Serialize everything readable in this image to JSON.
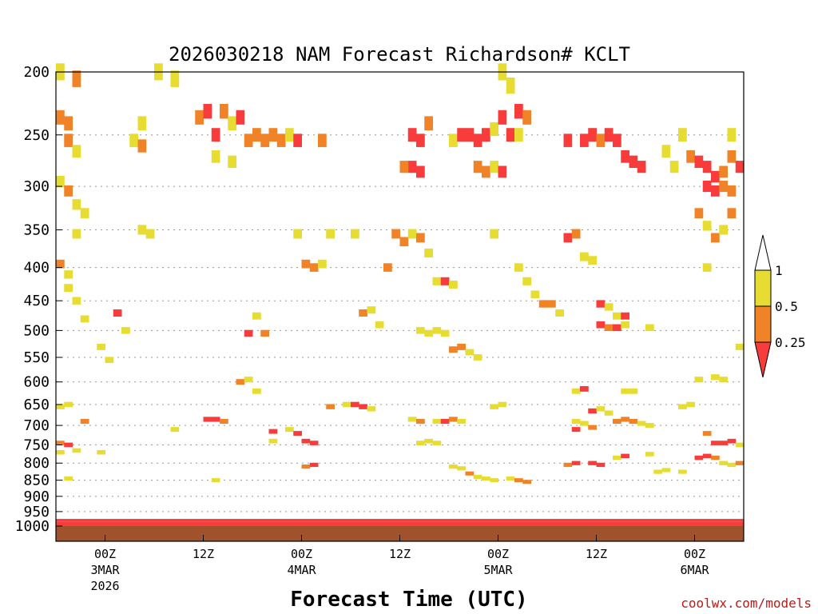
{
  "chart_data": {
    "type": "heatmap",
    "title": "2026030218 NAM Forecast Richardson# KCLT",
    "xlabel": "Forecast Time (UTC)",
    "ylabel": "",
    "y_ticks": [
      200,
      250,
      300,
      350,
      400,
      450,
      500,
      550,
      600,
      650,
      700,
      750,
      800,
      850,
      900,
      950,
      1000
    ],
    "y_range": [
      1000,
      200
    ],
    "x_range_hours": [
      -6,
      78
    ],
    "x_ticks": [
      {
        "hour": 0,
        "label": "00Z",
        "date": "3MAR",
        "year": "2026"
      },
      {
        "hour": 12,
        "label": "12Z",
        "date": "",
        "year": ""
      },
      {
        "hour": 24,
        "label": "00Z",
        "date": "4MAR",
        "year": ""
      },
      {
        "hour": 36,
        "label": "12Z",
        "date": "",
        "year": ""
      },
      {
        "hour": 48,
        "label": "00Z",
        "date": "5MAR",
        "year": ""
      },
      {
        "hour": 60,
        "label": "12Z",
        "date": "",
        "year": ""
      },
      {
        "hour": 72,
        "label": "00Z",
        "date": "6MAR",
        "year": ""
      }
    ],
    "levels": [
      {
        "max_ri": 0.25,
        "color": "#f83c3c"
      },
      {
        "max_ri": 0.5,
        "color": "#f08228"
      },
      {
        "max_ri": 1,
        "color": "#e6dc32"
      }
    ],
    "colorbar_labels": [
      "1",
      "0.5",
      "0.25"
    ],
    "surface_color": "#a0522d",
    "cells": [
      {
        "t": -6,
        "p": 200,
        "l": 3
      },
      {
        "t": -4,
        "p": 205,
        "l": 2
      },
      {
        "t": 6,
        "p": 200,
        "l": 3
      },
      {
        "t": 8,
        "p": 205,
        "l": 3
      },
      {
        "t": -6,
        "p": 235,
        "l": 2
      },
      {
        "t": -5,
        "p": 240,
        "l": 2
      },
      {
        "t": -5,
        "p": 255,
        "l": 2
      },
      {
        "t": -4,
        "p": 265,
        "l": 3
      },
      {
        "t": 3,
        "p": 255,
        "l": 3
      },
      {
        "t": 4,
        "p": 260,
        "l": 2
      },
      {
        "t": 4,
        "p": 240,
        "l": 3
      },
      {
        "t": 11,
        "p": 235,
        "l": 2
      },
      {
        "t": 12,
        "p": 230,
        "l": 1
      },
      {
        "t": 13,
        "p": 250,
        "l": 1
      },
      {
        "t": 14,
        "p": 230,
        "l": 2
      },
      {
        "t": 15,
        "p": 240,
        "l": 3
      },
      {
        "t": 16,
        "p": 235,
        "l": 1
      },
      {
        "t": 17,
        "p": 255,
        "l": 2
      },
      {
        "t": 18,
        "p": 250,
        "l": 2
      },
      {
        "t": 19,
        "p": 255,
        "l": 2
      },
      {
        "t": 20,
        "p": 250,
        "l": 2
      },
      {
        "t": 21,
        "p": 255,
        "l": 2
      },
      {
        "t": 22,
        "p": 250,
        "l": 3
      },
      {
        "t": 13,
        "p": 270,
        "l": 3
      },
      {
        "t": 15,
        "p": 275,
        "l": 3
      },
      {
        "t": 23,
        "p": 255,
        "l": 1
      },
      {
        "t": 26,
        "p": 255,
        "l": 2
      },
      {
        "t": 37,
        "p": 250,
        "l": 1
      },
      {
        "t": 38,
        "p": 255,
        "l": 1
      },
      {
        "t": 39,
        "p": 240,
        "l": 2
      },
      {
        "t": 37,
        "p": 280,
        "l": 1
      },
      {
        "t": 38,
        "p": 285,
        "l": 1
      },
      {
        "t": 36,
        "p": 280,
        "l": 2
      },
      {
        "t": 42,
        "p": 255,
        "l": 3
      },
      {
        "t": 43,
        "p": 250,
        "l": 1
      },
      {
        "t": 44,
        "p": 250,
        "l": 1
      },
      {
        "t": 45,
        "p": 255,
        "l": 1
      },
      {
        "t": 46,
        "p": 250,
        "l": 1
      },
      {
        "t": 47,
        "p": 245,
        "l": 3
      },
      {
        "t": 45,
        "p": 280,
        "l": 2
      },
      {
        "t": 46,
        "p": 285,
        "l": 2
      },
      {
        "t": 47,
        "p": 280,
        "l": 3
      },
      {
        "t": 48,
        "p": 285,
        "l": 1
      },
      {
        "t": 48,
        "p": 235,
        "l": 1
      },
      {
        "t": 49,
        "p": 250,
        "l": 1
      },
      {
        "t": 50,
        "p": 230,
        "l": 1
      },
      {
        "t": 51,
        "p": 235,
        "l": 2
      },
      {
        "t": 48,
        "p": 200,
        "l": 3
      },
      {
        "t": 49,
        "p": 210,
        "l": 3
      },
      {
        "t": 50,
        "p": 250,
        "l": 3
      },
      {
        "t": 56,
        "p": 255,
        "l": 1
      },
      {
        "t": 58,
        "p": 255,
        "l": 1
      },
      {
        "t": 59,
        "p": 250,
        "l": 1
      },
      {
        "t": 60,
        "p": 255,
        "l": 2
      },
      {
        "t": 61,
        "p": 250,
        "l": 1
      },
      {
        "t": 62,
        "p": 255,
        "l": 1
      },
      {
        "t": 63,
        "p": 270,
        "l": 1
      },
      {
        "t": 64,
        "p": 275,
        "l": 1
      },
      {
        "t": 65,
        "p": 280,
        "l": 1
      },
      {
        "t": 68,
        "p": 265,
        "l": 3
      },
      {
        "t": 69,
        "p": 280,
        "l": 3
      },
      {
        "t": 70,
        "p": 250,
        "l": 3
      },
      {
        "t": 71,
        "p": 270,
        "l": 2
      },
      {
        "t": 72,
        "p": 275,
        "l": 1
      },
      {
        "t": 73,
        "p": 280,
        "l": 1
      },
      {
        "t": 74,
        "p": 290,
        "l": 1
      },
      {
        "t": 75,
        "p": 285,
        "l": 2
      },
      {
        "t": 76,
        "p": 270,
        "l": 2
      },
      {
        "t": 77,
        "p": 280,
        "l": 1
      },
      {
        "t": 76,
        "p": 250,
        "l": 3
      },
      {
        "t": 73,
        "p": 300,
        "l": 1
      },
      {
        "t": 74,
        "p": 305,
        "l": 1
      },
      {
        "t": 75,
        "p": 300,
        "l": 2
      },
      {
        "t": 76,
        "p": 305,
        "l": 2
      },
      {
        "t": -6,
        "p": 295,
        "l": 3
      },
      {
        "t": -5,
        "p": 305,
        "l": 2
      },
      {
        "t": -4,
        "p": 320,
        "l": 3
      },
      {
        "t": -3,
        "p": 330,
        "l": 3
      },
      {
        "t": -4,
        "p": 355,
        "l": 3
      },
      {
        "t": -6,
        "p": 395,
        "l": 2
      },
      {
        "t": -5,
        "p": 410,
        "l": 3
      },
      {
        "t": -5,
        "p": 430,
        "l": 3
      },
      {
        "t": -4,
        "p": 450,
        "l": 3
      },
      {
        "t": -3,
        "p": 480,
        "l": 3
      },
      {
        "t": 1,
        "p": 470,
        "l": 1
      },
      {
        "t": 2,
        "p": 500,
        "l": 3
      },
      {
        "t": 4,
        "p": 350,
        "l": 3
      },
      {
        "t": 5,
        "p": 355,
        "l": 3
      },
      {
        "t": 23,
        "p": 355,
        "l": 3
      },
      {
        "t": 24,
        "p": 395,
        "l": 2
      },
      {
        "t": 25,
        "p": 400,
        "l": 2
      },
      {
        "t": 26,
        "p": 395,
        "l": 3
      },
      {
        "t": 27,
        "p": 355,
        "l": 3
      },
      {
        "t": 30,
        "p": 355,
        "l": 3
      },
      {
        "t": 34,
        "p": 400,
        "l": 2
      },
      {
        "t": 35,
        "p": 355,
        "l": 2
      },
      {
        "t": 36,
        "p": 365,
        "l": 2
      },
      {
        "t": 37,
        "p": 355,
        "l": 3
      },
      {
        "t": 38,
        "p": 360,
        "l": 2
      },
      {
        "t": 39,
        "p": 380,
        "l": 3
      },
      {
        "t": 40,
        "p": 420,
        "l": 3
      },
      {
        "t": 41,
        "p": 420,
        "l": 1
      },
      {
        "t": 42,
        "p": 425,
        "l": 3
      },
      {
        "t": 47,
        "p": 355,
        "l": 3
      },
      {
        "t": 50,
        "p": 400,
        "l": 3
      },
      {
        "t": 51,
        "p": 420,
        "l": 3
      },
      {
        "t": 52,
        "p": 440,
        "l": 3
      },
      {
        "t": 53,
        "p": 455,
        "l": 2
      },
      {
        "t": 54,
        "p": 455,
        "l": 2
      },
      {
        "t": 55,
        "p": 470,
        "l": 3
      },
      {
        "t": 56,
        "p": 360,
        "l": 1
      },
      {
        "t": 57,
        "p": 355,
        "l": 2
      },
      {
        "t": 58,
        "p": 385,
        "l": 3
      },
      {
        "t": 59,
        "p": 390,
        "l": 3
      },
      {
        "t": 60,
        "p": 455,
        "l": 1
      },
      {
        "t": 61,
        "p": 460,
        "l": 3
      },
      {
        "t": 62,
        "p": 475,
        "l": 3
      },
      {
        "t": 63,
        "p": 475,
        "l": 1
      },
      {
        "t": 60,
        "p": 490,
        "l": 1
      },
      {
        "t": 61,
        "p": 495,
        "l": 2
      },
      {
        "t": 62,
        "p": 495,
        "l": 1
      },
      {
        "t": 63,
        "p": 490,
        "l": 3
      },
      {
        "t": 66,
        "p": 495,
        "l": 3
      },
      {
        "t": 73,
        "p": 345,
        "l": 3
      },
      {
        "t": 74,
        "p": 360,
        "l": 2
      },
      {
        "t": 75,
        "p": 350,
        "l": 3
      },
      {
        "t": 76,
        "p": 330,
        "l": 2
      },
      {
        "t": 72,
        "p": 330,
        "l": 2
      },
      {
        "t": 73,
        "p": 400,
        "l": 3
      },
      {
        "t": 17,
        "p": 505,
        "l": 1
      },
      {
        "t": 19,
        "p": 505,
        "l": 2
      },
      {
        "t": 18,
        "p": 475,
        "l": 3
      },
      {
        "t": 31,
        "p": 470,
        "l": 2
      },
      {
        "t": 32,
        "p": 465,
        "l": 3
      },
      {
        "t": 33,
        "p": 490,
        "l": 3
      },
      {
        "t": 38,
        "p": 500,
        "l": 3
      },
      {
        "t": 39,
        "p": 505,
        "l": 3
      },
      {
        "t": 40,
        "p": 500,
        "l": 3
      },
      {
        "t": 41,
        "p": 505,
        "l": 3
      },
      {
        "t": 42,
        "p": 535,
        "l": 2
      },
      {
        "t": 43,
        "p": 530,
        "l": 2
      },
      {
        "t": 44,
        "p": 540,
        "l": 3
      },
      {
        "t": 45,
        "p": 550,
        "l": 3
      },
      {
        "t": -1,
        "p": 530,
        "l": 3
      },
      {
        "t": 0,
        "p": 555,
        "l": 3
      },
      {
        "t": 77,
        "p": 530,
        "l": 3
      },
      {
        "t": 16,
        "p": 600,
        "l": 2
      },
      {
        "t": 17,
        "p": 595,
        "l": 3
      },
      {
        "t": 18,
        "p": 620,
        "l": 3
      },
      {
        "t": 72,
        "p": 595,
        "l": 3
      },
      {
        "t": 74,
        "p": 590,
        "l": 3
      },
      {
        "t": 75,
        "p": 595,
        "l": 3
      },
      {
        "t": 57,
        "p": 620,
        "l": 3
      },
      {
        "t": 58,
        "p": 615,
        "l": 1
      },
      {
        "t": 63,
        "p": 620,
        "l": 3
      },
      {
        "t": 64,
        "p": 620,
        "l": 3
      },
      {
        "t": 70,
        "p": 655,
        "l": 3
      },
      {
        "t": 71,
        "p": 650,
        "l": 3
      },
      {
        "t": -6,
        "p": 655,
        "l": 3
      },
      {
        "t": -5,
        "p": 650,
        "l": 3
      },
      {
        "t": -3,
        "p": 690,
        "l": 2
      },
      {
        "t": 12,
        "p": 685,
        "l": 1
      },
      {
        "t": 13,
        "p": 685,
        "l": 1
      },
      {
        "t": 14,
        "p": 690,
        "l": 2
      },
      {
        "t": 27,
        "p": 655,
        "l": 2
      },
      {
        "t": 29,
        "p": 650,
        "l": 3
      },
      {
        "t": 30,
        "p": 650,
        "l": 1
      },
      {
        "t": 31,
        "p": 655,
        "l": 1
      },
      {
        "t": 32,
        "p": 660,
        "l": 3
      },
      {
        "t": 37,
        "p": 685,
        "l": 3
      },
      {
        "t": 38,
        "p": 690,
        "l": 2
      },
      {
        "t": 40,
        "p": 690,
        "l": 3
      },
      {
        "t": 41,
        "p": 690,
        "l": 1
      },
      {
        "t": 42,
        "p": 685,
        "l": 2
      },
      {
        "t": 43,
        "p": 690,
        "l": 3
      },
      {
        "t": 47,
        "p": 655,
        "l": 3
      },
      {
        "t": 48,
        "p": 650,
        "l": 3
      },
      {
        "t": 57,
        "p": 690,
        "l": 3
      },
      {
        "t": 58,
        "p": 695,
        "l": 3
      },
      {
        "t": 59,
        "p": 665,
        "l": 1
      },
      {
        "t": 60,
        "p": 660,
        "l": 3
      },
      {
        "t": 61,
        "p": 670,
        "l": 3
      },
      {
        "t": 62,
        "p": 690,
        "l": 2
      },
      {
        "t": 63,
        "p": 685,
        "l": 2
      },
      {
        "t": 64,
        "p": 690,
        "l": 2
      },
      {
        "t": 65,
        "p": 695,
        "l": 3
      },
      {
        "t": 66,
        "p": 700,
        "l": 3
      },
      {
        "t": 57,
        "p": 710,
        "l": 1
      },
      {
        "t": 59,
        "p": 705,
        "l": 2
      },
      {
        "t": 8,
        "p": 710,
        "l": 3
      },
      {
        "t": 20,
        "p": 715,
        "l": 1
      },
      {
        "t": 22,
        "p": 710,
        "l": 3
      },
      {
        "t": 23,
        "p": 720,
        "l": 1
      },
      {
        "t": 24,
        "p": 740,
        "l": 1
      },
      {
        "t": 25,
        "p": 745,
        "l": 1
      },
      {
        "t": 20,
        "p": 740,
        "l": 3
      },
      {
        "t": 38,
        "p": 745,
        "l": 3
      },
      {
        "t": 39,
        "p": 740,
        "l": 3
      },
      {
        "t": 40,
        "p": 745,
        "l": 3
      },
      {
        "t": 73,
        "p": 720,
        "l": 2
      },
      {
        "t": 74,
        "p": 745,
        "l": 1
      },
      {
        "t": 75,
        "p": 745,
        "l": 1
      },
      {
        "t": 76,
        "p": 740,
        "l": 1
      },
      {
        "t": 77,
        "p": 750,
        "l": 3
      },
      {
        "t": -6,
        "p": 745,
        "l": 2
      },
      {
        "t": -5,
        "p": 750,
        "l": 1
      },
      {
        "t": -6,
        "p": 770,
        "l": 3
      },
      {
        "t": -4,
        "p": 765,
        "l": 3
      },
      {
        "t": -1,
        "p": 770,
        "l": 3
      },
      {
        "t": 24,
        "p": 810,
        "l": 2
      },
      {
        "t": 25,
        "p": 805,
        "l": 1
      },
      {
        "t": 56,
        "p": 805,
        "l": 2
      },
      {
        "t": 57,
        "p": 800,
        "l": 1
      },
      {
        "t": 59,
        "p": 800,
        "l": 1
      },
      {
        "t": 60,
        "p": 805,
        "l": 1
      },
      {
        "t": 62,
        "p": 785,
        "l": 3
      },
      {
        "t": 63,
        "p": 780,
        "l": 1
      },
      {
        "t": 66,
        "p": 775,
        "l": 3
      },
      {
        "t": 72,
        "p": 785,
        "l": 1
      },
      {
        "t": 73,
        "p": 780,
        "l": 1
      },
      {
        "t": 74,
        "p": 785,
        "l": 2
      },
      {
        "t": 75,
        "p": 800,
        "l": 3
      },
      {
        "t": 76,
        "p": 805,
        "l": 3
      },
      {
        "t": 77,
        "p": 800,
        "l": 2
      },
      {
        "t": 67,
        "p": 825,
        "l": 3
      },
      {
        "t": 68,
        "p": 820,
        "l": 3
      },
      {
        "t": 70,
        "p": 825,
        "l": 3
      },
      {
        "t": 42,
        "p": 810,
        "l": 3
      },
      {
        "t": 43,
        "p": 815,
        "l": 3
      },
      {
        "t": 44,
        "p": 830,
        "l": 2
      },
      {
        "t": 45,
        "p": 840,
        "l": 3
      },
      {
        "t": 46,
        "p": 845,
        "l": 3
      },
      {
        "t": 47,
        "p": 850,
        "l": 3
      },
      {
        "t": 49,
        "p": 845,
        "l": 3
      },
      {
        "t": 50,
        "p": 850,
        "l": 2
      },
      {
        "t": 51,
        "p": 855,
        "l": 2
      },
      {
        "t": -5,
        "p": 845,
        "l": 3
      },
      {
        "t": 13,
        "p": 850,
        "l": 3
      }
    ],
    "bands": [
      {
        "t0": -6,
        "t1": 78,
        "p0": 1000,
        "p1": 985,
        "l": 1
      },
      {
        "t0": -6,
        "t1": 78,
        "p0": 985,
        "p1": 975,
        "l": 1
      }
    ]
  },
  "footer": {
    "credit": "coolwx.com/models"
  }
}
